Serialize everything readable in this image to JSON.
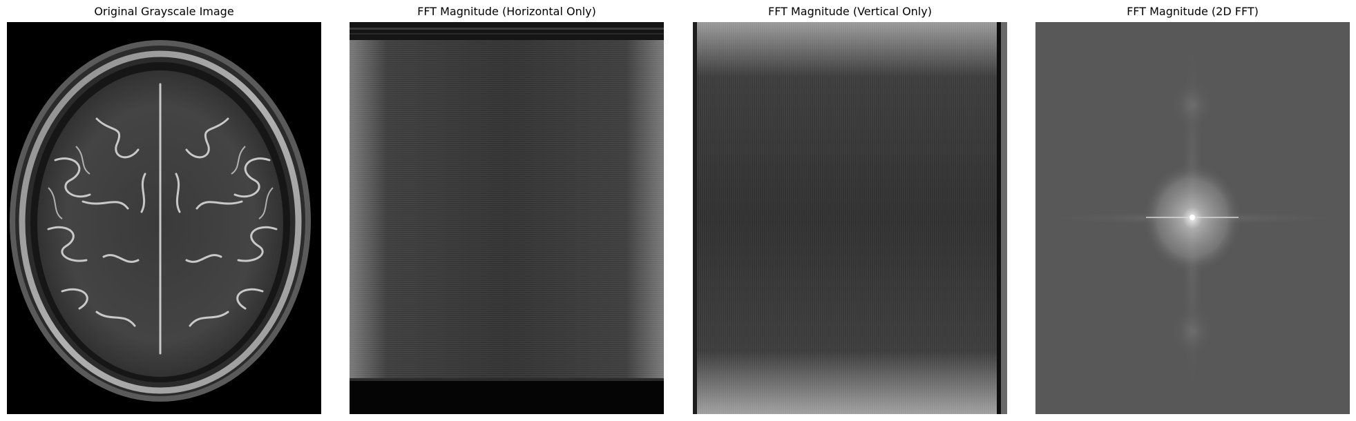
{
  "figure": {
    "panels": [
      {
        "title": "Original Grayscale Image",
        "icon": "brain-mri-image"
      },
      {
        "title": "FFT Magnitude (Horizontal Only)",
        "icon": "fft-horizontal-image"
      },
      {
        "title": "FFT Magnitude (Vertical Only)",
        "icon": "fft-vertical-image"
      },
      {
        "title": "FFT Magnitude (2D FFT)",
        "icon": "fft-2d-image"
      }
    ]
  }
}
